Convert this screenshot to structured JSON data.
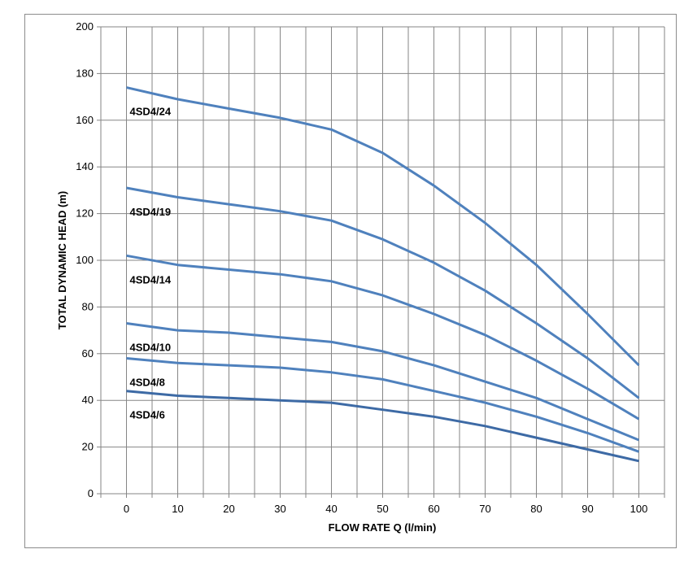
{
  "chart_data": {
    "type": "line",
    "xlabel": "FLOW RATE Q (l/min)",
    "ylabel": "TOTAL DYNAMIC HEAD (m)",
    "xlim": [
      -5,
      105
    ],
    "ylim": [
      0,
      200
    ],
    "x_ticks": [
      0,
      10,
      20,
      30,
      40,
      50,
      60,
      70,
      80,
      90,
      100
    ],
    "y_ticks": [
      0,
      20,
      40,
      60,
      80,
      100,
      120,
      140,
      160,
      180,
      200
    ],
    "grid": true,
    "x": [
      0,
      10,
      20,
      30,
      40,
      50,
      60,
      70,
      80,
      90,
      100
    ],
    "series": [
      {
        "name": "4SD4/24",
        "values": [
          174,
          169,
          165,
          161,
          156,
          146,
          132,
          116,
          98,
          77,
          55
        ]
      },
      {
        "name": "4SD4/19",
        "values": [
          131,
          127,
          124,
          121,
          117,
          109,
          99,
          87,
          73,
          58,
          41
        ]
      },
      {
        "name": "4SD4/14",
        "values": [
          102,
          98,
          96,
          94,
          91,
          85,
          77,
          68,
          57,
          45,
          32
        ]
      },
      {
        "name": "4SD4/10",
        "values": [
          73,
          70,
          69,
          67,
          65,
          61,
          55,
          48,
          41,
          32,
          23
        ]
      },
      {
        "name": "4SD4/8",
        "values": [
          58,
          56,
          55,
          54,
          52,
          49,
          44,
          39,
          33,
          26,
          18
        ]
      },
      {
        "name": "4SD4/6",
        "values": [
          44,
          42,
          41,
          40,
          39,
          36,
          33,
          29,
          24,
          19,
          14
        ]
      }
    ],
    "colors": {
      "line": "#4f81bd",
      "line_bottom": "#3d6aa5",
      "grid": "#868686",
      "axis": "#868686"
    }
  }
}
